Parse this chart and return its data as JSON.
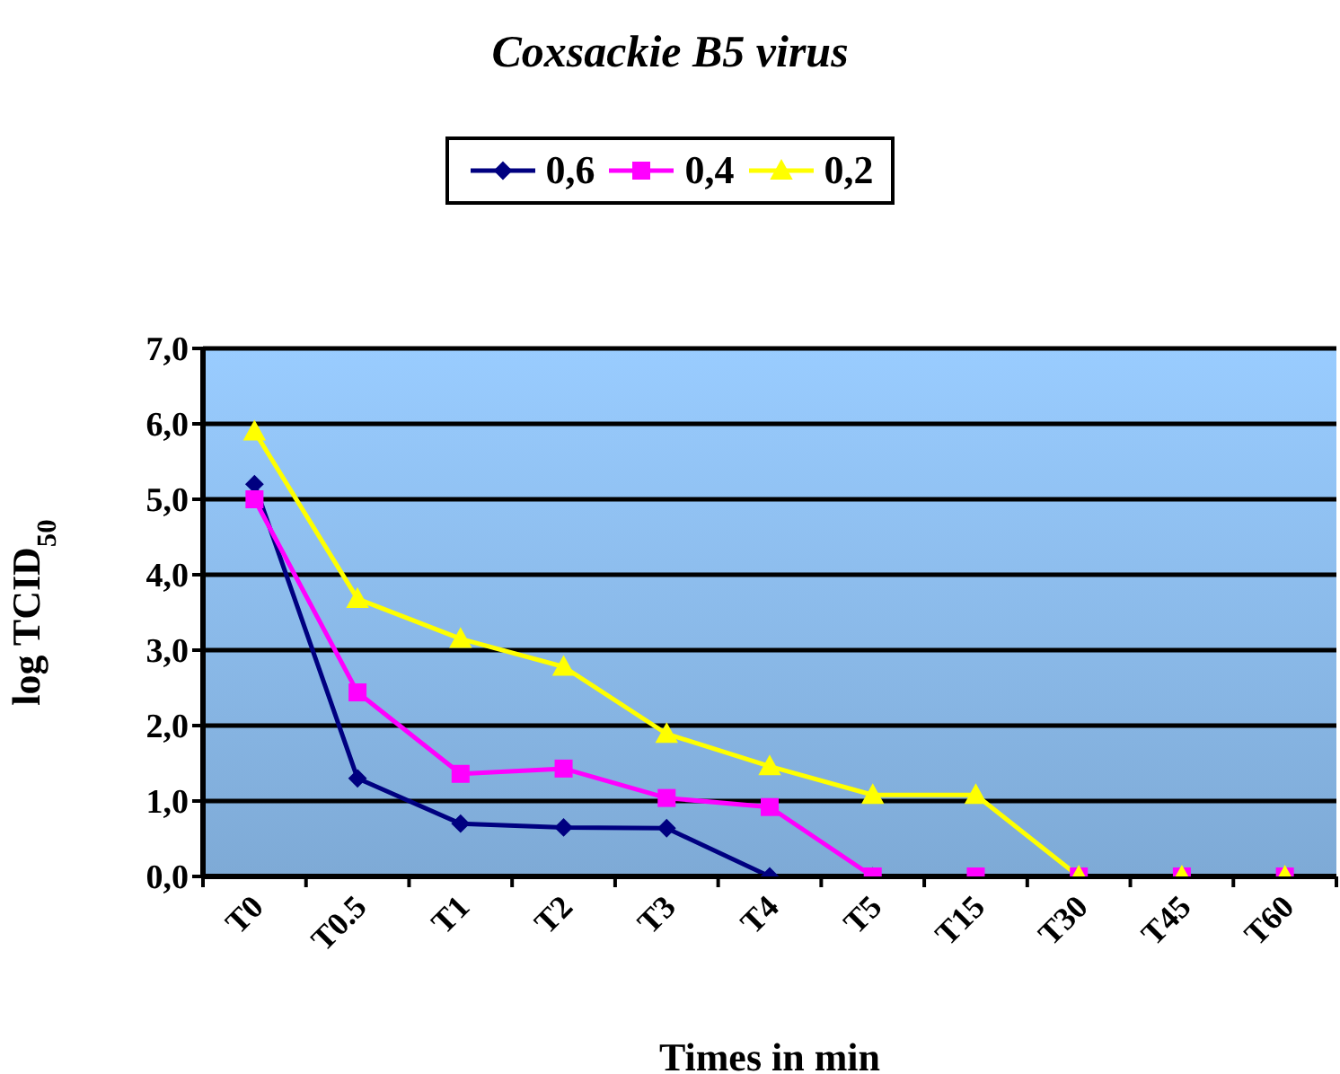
{
  "chart_data": {
    "type": "line",
    "title": "Coxsackie B5 virus",
    "xlabel": "Times in min",
    "ylabel": "log TCID$_{50}$",
    "categories": [
      "T0",
      "T0.5",
      "T1",
      "T2",
      "T3",
      "T4",
      "T5",
      "T15",
      "T30",
      "T45",
      "T60"
    ],
    "series": [
      {
        "name": "0,6",
        "color": "#000080",
        "marker": "diamond",
        "values": [
          5.2,
          1.3,
          0.7,
          0.65,
          0.64,
          0,
          0,
          null,
          null,
          null,
          null
        ]
      },
      {
        "name": "0,4",
        "color": "#ff00ff",
        "marker": "square",
        "values": [
          5.0,
          2.44,
          1.36,
          1.43,
          1.04,
          0.92,
          0,
          0,
          0,
          0,
          0
        ]
      },
      {
        "name": "0,2",
        "color": "#ffff00",
        "marker": "triangle",
        "values": [
          5.9,
          3.68,
          3.15,
          2.78,
          1.89,
          1.46,
          1.08,
          1.08,
          0,
          0,
          0
        ]
      }
    ],
    "ylim": [
      0,
      7
    ],
    "yticks": [
      {
        "value": 0,
        "label": "0,0"
      },
      {
        "value": 1,
        "label": "1,0"
      },
      {
        "value": 2,
        "label": "2,0"
      },
      {
        "value": 3,
        "label": "3,0"
      },
      {
        "value": 4,
        "label": "4,0"
      },
      {
        "value": 5,
        "label": "5,0"
      },
      {
        "value": 6,
        "label": "6,0"
      },
      {
        "value": 7,
        "label": "7,0"
      }
    ],
    "grid": "y",
    "legend": "top",
    "line_style": "solid"
  }
}
